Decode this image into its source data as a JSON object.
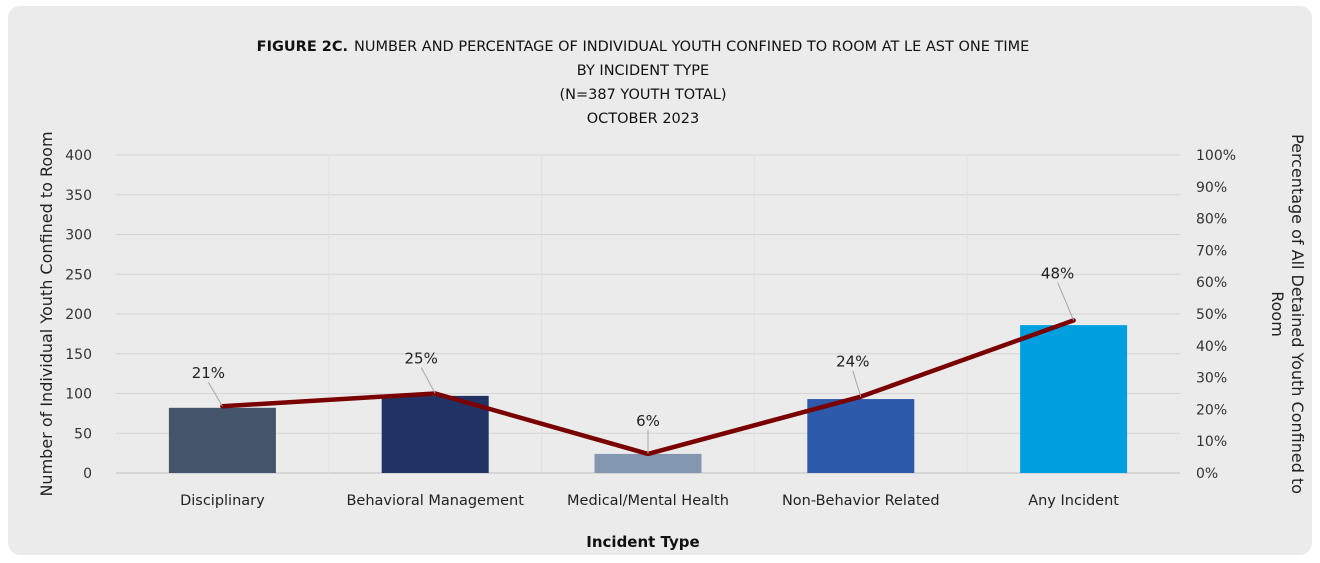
{
  "chart_data": {
    "type": "bar",
    "title_bold": "FIGURE 2C.",
    "title_lines": [
      "NUMBER AND PERCENTAGE OF INDIVIDUAL YOUTH CONFINED TO ROOM AT LE   AST ONE TIME",
      "BY INCIDENT TYPE",
      "(N=387 YOUTH TOTAL)",
      "OCTOBER 2023"
    ],
    "categories": [
      "Disciplinary",
      "Behavioral Management",
      "Medical/Mental Health",
      "Non-Behavior Related",
      "Any Incident"
    ],
    "values": [
      82,
      97,
      24,
      93,
      186
    ],
    "bar_colors": [
      "#44546a",
      "#203364",
      "#8497b0",
      "#2e5aac",
      "#00a0e0"
    ],
    "line_series": {
      "values": [
        21,
        25,
        6,
        24,
        48
      ],
      "labels": [
        "21%",
        "25%",
        "6%",
        "24%",
        "48%"
      ],
      "color": "#7a0000"
    },
    "xlabel": "Incident Type",
    "ylabel": "Number of Individual Youth Confined to Room",
    "y2label_lines": [
      "Percentage of All Detained Youth Confined to",
      "Room"
    ],
    "ylim": [
      0,
      400
    ],
    "y_ticks": [
      "0",
      "50",
      "100",
      "150",
      "200",
      "250",
      "300",
      "350",
      "400"
    ],
    "y2lim": [
      0,
      100
    ],
    "y2_ticks": [
      "0%",
      "10%",
      "20%",
      "30%",
      "40%",
      "50%",
      "60%",
      "70%",
      "80%",
      "90%",
      "100%"
    ],
    "grid": true
  }
}
